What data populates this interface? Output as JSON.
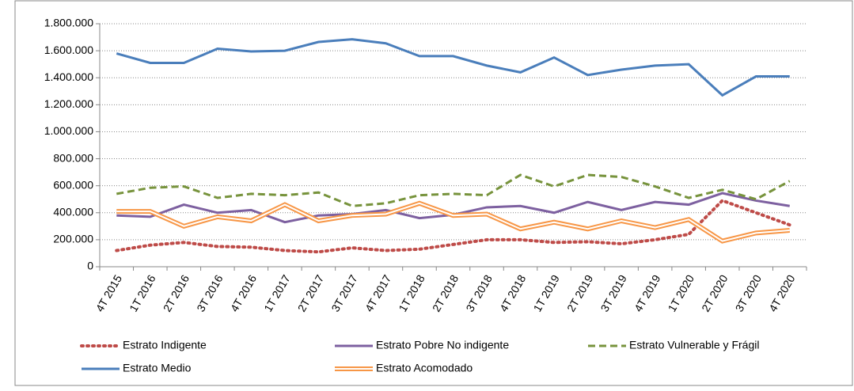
{
  "chart_data": {
    "type": "line",
    "categories": [
      "4T 2015",
      "1T 2016",
      "2T 2016",
      "3T 2016",
      "4T 2016",
      "1T 2017",
      "2T 2017",
      "3T 2017",
      "4T 2017",
      "1T 2018",
      "2T 2018",
      "3T 2018",
      "4T 2018",
      "1T 2019",
      "2T 2019",
      "3T 2019",
      "4T 2019",
      "1T 2020",
      "2T 2020",
      "3T 2020",
      "4T 2020"
    ],
    "series": [
      {
        "name": "Estrato Indigente",
        "color": "#be4b48",
        "style": "dotted",
        "values": [
          120000,
          160000,
          180000,
          150000,
          145000,
          120000,
          110000,
          140000,
          120000,
          130000,
          165000,
          200000,
          200000,
          180000,
          185000,
          170000,
          200000,
          240000,
          490000,
          400000,
          310000
        ]
      },
      {
        "name": "Estrato Pobre No indigente",
        "color": "#7d60a0",
        "style": "solid",
        "values": [
          380000,
          370000,
          460000,
          400000,
          420000,
          330000,
          380000,
          390000,
          420000,
          360000,
          385000,
          440000,
          450000,
          400000,
          480000,
          420000,
          480000,
          460000,
          545000,
          490000,
          450000
        ]
      },
      {
        "name": "Estrato Vulnerable y Frágil",
        "color": "#77933c",
        "style": "dashed",
        "values": [
          540000,
          585000,
          595000,
          510000,
          540000,
          530000,
          550000,
          450000,
          470000,
          530000,
          540000,
          530000,
          680000,
          595000,
          680000,
          665000,
          595000,
          510000,
          570000,
          500000,
          635000
        ]
      },
      {
        "name": "Estrato Medio",
        "color": "#4a7ebb",
        "style": "solid",
        "values": [
          1580000,
          1510000,
          1510000,
          1615000,
          1595000,
          1600000,
          1665000,
          1685000,
          1655000,
          1560000,
          1560000,
          1490000,
          1440000,
          1550000,
          1420000,
          1460000,
          1490000,
          1500000,
          1270000,
          1410000,
          1410000
        ]
      },
      {
        "name": "Estrato Acomodado",
        "color": "#f79646",
        "style": "double",
        "values": [
          410000,
          410000,
          300000,
          370000,
          340000,
          460000,
          340000,
          380000,
          390000,
          470000,
          380000,
          390000,
          280000,
          330000,
          280000,
          340000,
          290000,
          350000,
          190000,
          250000,
          270000
        ]
      }
    ],
    "ylim": [
      0,
      1800000
    ],
    "yticks": [
      0,
      {
        "value": 200000,
        "label": "200.000"
      },
      {
        "value": 400000,
        "label": "400.000"
      },
      {
        "value": 600000,
        "label": "600.000"
      },
      {
        "value": 800000,
        "label": "800.000"
      },
      {
        "value": 1000000,
        "label": "1.000.000"
      },
      {
        "value": 1200000,
        "label": "1.200.000"
      },
      {
        "value": 1400000,
        "label": "1.400.000"
      },
      {
        "value": 1600000,
        "label": "1.600.000"
      },
      {
        "value": 1800000,
        "label": "1.800.000"
      }
    ],
    "grid": true
  }
}
